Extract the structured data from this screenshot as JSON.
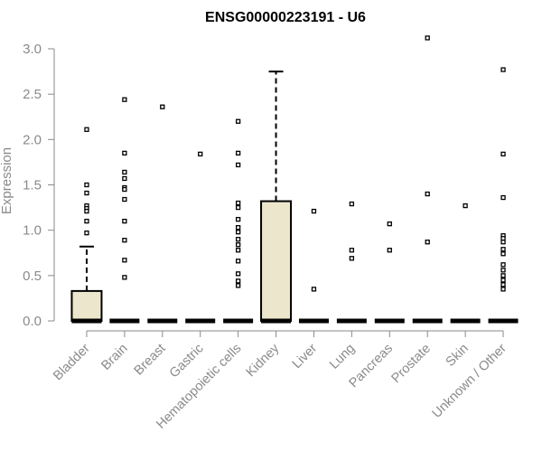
{
  "chart_data": {
    "type": "boxplot",
    "title": "ENSG00000223191 - U6",
    "ylabel": "Expression",
    "xlabel": "",
    "ylim": [
      0,
      3.0
    ],
    "yticks": [
      0.0,
      0.5,
      1.0,
      1.5,
      2.0,
      2.5,
      3.0
    ],
    "ytick_labels": [
      "0.0",
      "0.5",
      "1.0",
      "1.5",
      "2.0",
      "2.5",
      "3.0"
    ],
    "grid": false,
    "box_color": "#ece6cc",
    "categories": [
      "Bladder",
      "Brain",
      "Breast",
      "Gastric",
      "Hematopoietic cells",
      "Kidney",
      "Liver",
      "Lung",
      "Pancreas",
      "Prostate",
      "Skin",
      "Unknown / Other"
    ],
    "boxes": [
      {
        "category": "Bladder",
        "min": 0.0,
        "q1": 0.0,
        "median": 0.0,
        "q3": 0.33,
        "whisker_high": 0.82,
        "outliers": [
          2.11,
          1.5,
          1.41,
          1.27,
          1.24,
          1.21,
          1.1,
          0.97
        ]
      },
      {
        "category": "Brain",
        "min": 0.0,
        "q1": 0.0,
        "median": 0.0,
        "q3": 0.0,
        "whisker_high": 0.0,
        "outliers": [
          2.44,
          1.85,
          1.64,
          1.57,
          1.47,
          1.45,
          1.34,
          1.1,
          0.89,
          0.67,
          0.48
        ]
      },
      {
        "category": "Breast",
        "min": 0.0,
        "q1": 0.0,
        "median": 0.0,
        "q3": 0.0,
        "whisker_high": 0.0,
        "outliers": [
          2.36
        ]
      },
      {
        "category": "Gastric",
        "min": 0.0,
        "q1": 0.0,
        "median": 0.0,
        "q3": 0.0,
        "whisker_high": 0.0,
        "outliers": [
          1.84
        ]
      },
      {
        "category": "Hematopoietic cells",
        "min": 0.0,
        "q1": 0.0,
        "median": 0.0,
        "q3": 0.0,
        "whisker_high": 0.0,
        "outliers": [
          2.2,
          1.85,
          1.72,
          1.3,
          1.25,
          1.12,
          1.03,
          0.98,
          0.9,
          0.84,
          0.78,
          0.66,
          0.52,
          0.44,
          0.39
        ]
      },
      {
        "category": "Kidney",
        "min": 0.0,
        "q1": 0.0,
        "median": 0.0,
        "q3": 1.32,
        "whisker_high": 2.75,
        "outliers": []
      },
      {
        "category": "Liver",
        "min": 0.0,
        "q1": 0.0,
        "median": 0.0,
        "q3": 0.0,
        "whisker_high": 0.0,
        "outliers": [
          1.21,
          0.35
        ]
      },
      {
        "category": "Lung",
        "min": 0.0,
        "q1": 0.0,
        "median": 0.0,
        "q3": 0.0,
        "whisker_high": 0.0,
        "outliers": [
          1.29,
          0.78,
          0.69
        ]
      },
      {
        "category": "Pancreas",
        "min": 0.0,
        "q1": 0.0,
        "median": 0.0,
        "q3": 0.0,
        "whisker_high": 0.0,
        "outliers": [
          1.07,
          0.78
        ]
      },
      {
        "category": "Prostate",
        "min": 0.0,
        "q1": 0.0,
        "median": 0.0,
        "q3": 0.0,
        "whisker_high": 0.0,
        "outliers": [
          3.12,
          1.4,
          0.87
        ]
      },
      {
        "category": "Skin",
        "min": 0.0,
        "q1": 0.0,
        "median": 0.0,
        "q3": 0.0,
        "whisker_high": 0.0,
        "outliers": [
          1.27
        ]
      },
      {
        "category": "Unknown / Other",
        "min": 0.0,
        "q1": 0.0,
        "median": 0.0,
        "q3": 0.0,
        "whisker_high": 0.0,
        "outliers": [
          2.77,
          1.84,
          1.36,
          0.94,
          0.91,
          0.87,
          0.79,
          0.74,
          0.62,
          0.56,
          0.5,
          0.45,
          0.4,
          0.35
        ]
      }
    ]
  }
}
